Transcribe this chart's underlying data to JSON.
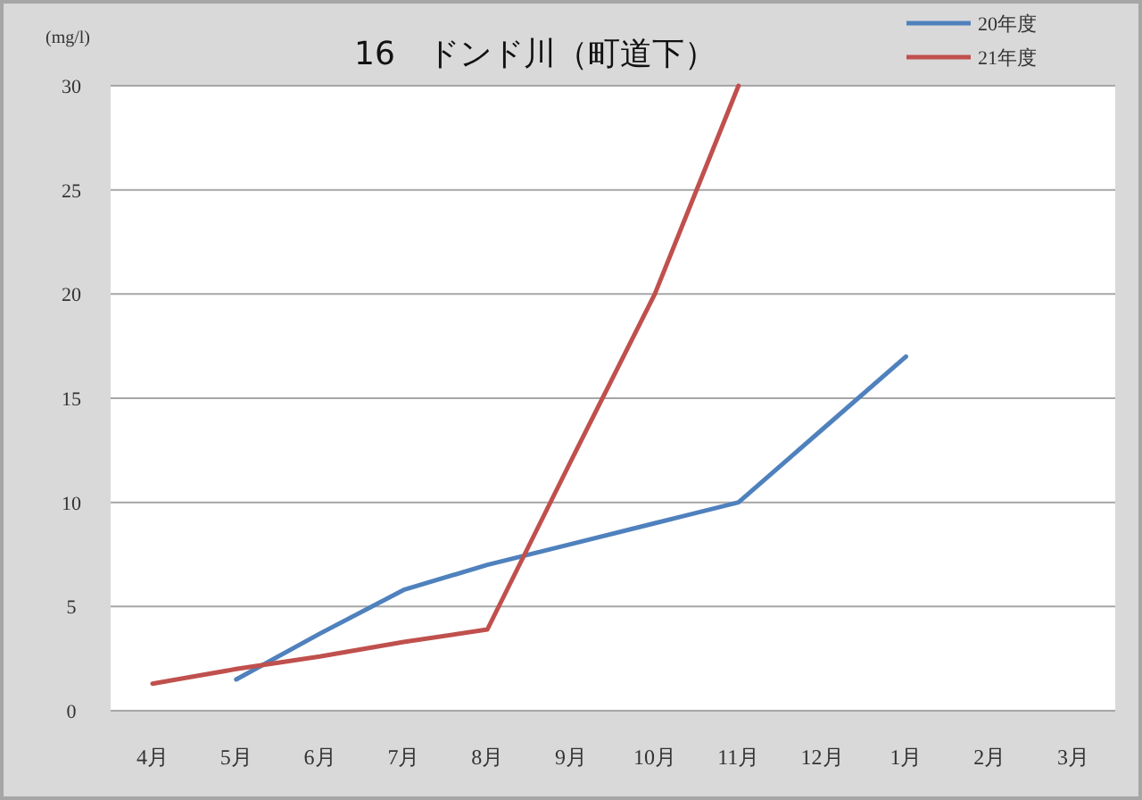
{
  "chart_data": {
    "type": "line",
    "title": "16　ドンド川（町道下）",
    "ylabel": "(mg/l)",
    "categories": [
      "4月",
      "5月",
      "6月",
      "7月",
      "8月",
      "9月",
      "10月",
      "11月",
      "12月",
      "1月",
      "2月",
      "3月"
    ],
    "series": [
      {
        "name": "20年度",
        "color": "#4f81bd",
        "values": [
          null,
          1.5,
          3.7,
          5.8,
          7,
          8,
          9,
          10,
          13.5,
          17,
          null,
          null
        ]
      },
      {
        "name": "21年度",
        "color": "#c0504d",
        "values": [
          1.3,
          2,
          2.6,
          3.3,
          3.9,
          12,
          20,
          30,
          null,
          null,
          null,
          null
        ]
      }
    ],
    "ylim": [
      0,
      30
    ],
    "yticks": [
      0,
      5,
      10,
      15,
      20,
      25,
      30
    ],
    "grid": "y",
    "legend": "top right",
    "marker": "none",
    "line_style": "solid"
  }
}
